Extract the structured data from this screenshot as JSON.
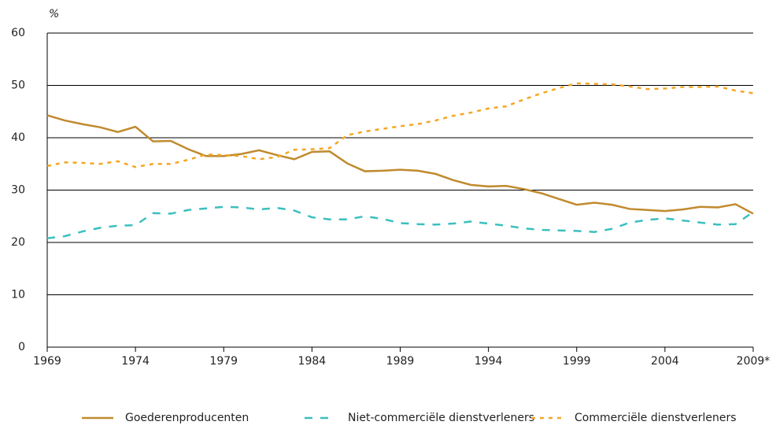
{
  "chart_data": {
    "type": "line",
    "y_label": "%",
    "x": [
      1969,
      1970,
      1971,
      1972,
      1973,
      1974,
      1975,
      1976,
      1977,
      1978,
      1979,
      1980,
      1981,
      1982,
      1983,
      1984,
      1985,
      1986,
      1987,
      1988,
      1989,
      1990,
      1991,
      1992,
      1993,
      1994,
      1995,
      1996,
      1997,
      1998,
      1999,
      2000,
      2001,
      2002,
      2003,
      2004,
      2005,
      2006,
      2007,
      2008,
      2009
    ],
    "series": [
      {
        "name": "Goederenproducenten",
        "color": "#c08a2e",
        "dash": "solid",
        "values": [
          44.3,
          43.3,
          42.6,
          42.0,
          41.1,
          42.1,
          39.3,
          39.4,
          37.8,
          36.5,
          36.5,
          36.9,
          37.6,
          36.7,
          35.9,
          37.3,
          37.4,
          35.1,
          33.6,
          33.7,
          33.9,
          33.7,
          33.1,
          31.9,
          31.0,
          30.7,
          30.8,
          30.2,
          29.4,
          28.3,
          27.2,
          27.6,
          27.2,
          26.4,
          26.2,
          26.0,
          26.3,
          26.8,
          26.7,
          27.3,
          25.5
        ]
      },
      {
        "name": "Niet-commerciële dienstverleners",
        "color": "#3bbfc0",
        "dash": "dashed",
        "values": [
          20.8,
          21.2,
          22.1,
          22.8,
          23.2,
          23.3,
          25.6,
          25.5,
          26.2,
          26.5,
          26.8,
          26.7,
          26.3,
          26.6,
          26.1,
          24.8,
          24.4,
          24.4,
          25.0,
          24.5,
          23.7,
          23.5,
          23.4,
          23.6,
          24.0,
          23.6,
          23.2,
          22.7,
          22.4,
          22.3,
          22.2,
          22.0,
          22.6,
          23.8,
          24.3,
          24.6,
          24.2,
          23.8,
          23.4,
          23.5,
          25.8
        ]
      },
      {
        "name": "Commerciële dienstverleners",
        "color": "#f5a623",
        "dash": "dotted",
        "values": [
          34.6,
          35.3,
          35.2,
          35.0,
          35.5,
          34.4,
          35.0,
          35.0,
          35.8,
          36.8,
          36.7,
          36.5,
          35.9,
          36.3,
          37.7,
          37.8,
          38.0,
          40.5,
          41.2,
          41.7,
          42.2,
          42.6,
          43.3,
          44.2,
          44.8,
          45.6,
          46.0,
          47.3,
          48.5,
          49.5,
          50.4,
          50.3,
          50.2,
          49.8,
          49.3,
          49.4,
          49.7,
          49.7,
          49.8,
          49.0,
          48.5
        ]
      }
    ],
    "xlim": [
      1969,
      2009
    ],
    "xticks": [
      1969,
      1974,
      1979,
      1984,
      1989,
      1994,
      1999,
      2004,
      {
        "value": 2009,
        "label": "2009*"
      }
    ],
    "ylim": [
      0,
      60
    ],
    "yticks": [
      0,
      10,
      20,
      30,
      40,
      50,
      60
    ],
    "grid": true,
    "legend": "bottom"
  }
}
